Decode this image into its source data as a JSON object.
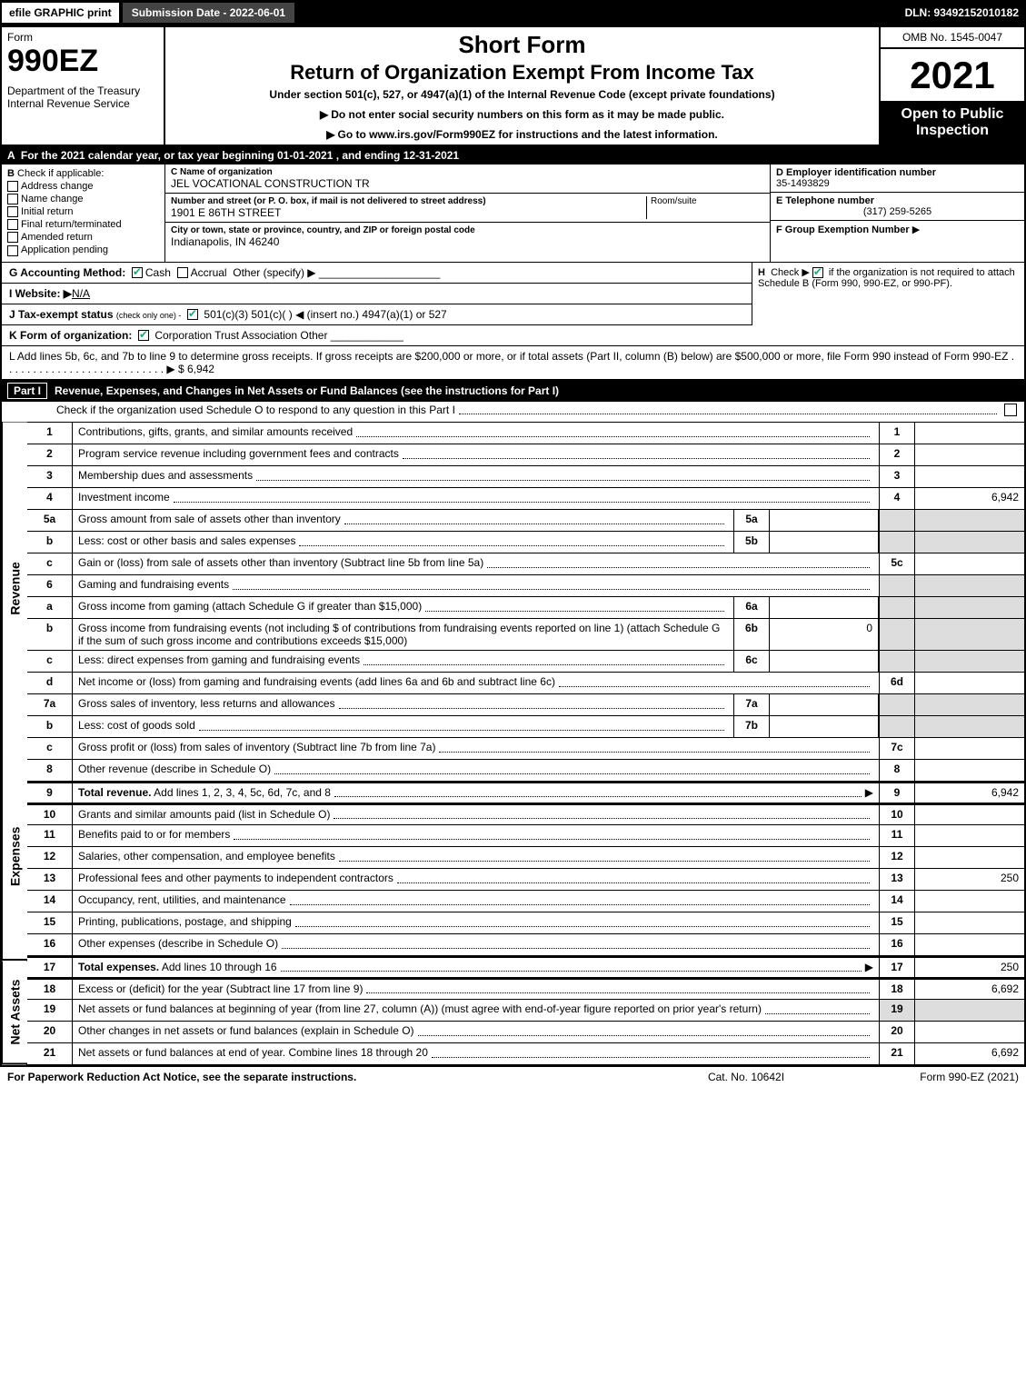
{
  "topbar": {
    "efile": "efile GRAPHIC print",
    "submission": "Submission Date - 2022-06-01",
    "dln": "DLN: 93492152010182"
  },
  "header": {
    "form": "Form",
    "formno": "990EZ",
    "dept": "Department of the Treasury\nInternal Revenue Service",
    "shortform": "Short Form",
    "roe": "Return of Organization Exempt From Income Tax",
    "under": "Under section 501(c), 527, or 4947(a)(1) of the Internal Revenue Code (except private foundations)",
    "noSSN": "Do not enter social security numbers on this form as it may be made public.",
    "goto": "Go to www.irs.gov/Form990EZ for instructions and the latest information.",
    "omb": "OMB No. 1545-0047",
    "year": "2021",
    "open": "Open to Public Inspection"
  },
  "A": "For the 2021 calendar year, or tax year beginning 01-01-2021 , and ending 12-31-2021",
  "B": {
    "title": "Check if applicable:",
    "items": [
      "Address change",
      "Name change",
      "Initial return",
      "Final return/terminated",
      "Amended return",
      "Application pending"
    ]
  },
  "C": {
    "nameLabel": "C Name of organization",
    "name": "JEL VOCATIONAL CONSTRUCTION TR",
    "streetLabel": "Number and street (or P. O. box, if mail is not delivered to street address)",
    "street": "1901 E 86TH STREET",
    "room": "Room/suite",
    "cityLabel": "City or town, state or province, country, and ZIP or foreign postal code",
    "city": "Indianapolis, IN  46240"
  },
  "D": {
    "label": "D Employer identification number",
    "value": "35-1493829"
  },
  "E": {
    "label": "E Telephone number",
    "value": "(317) 259-5265"
  },
  "F": {
    "label": "F Group Exemption Number",
    "arrow": "▶"
  },
  "G": {
    "label": "G Accounting Method:",
    "cash": "Cash",
    "accrual": "Accrual",
    "other": "Other (specify) ▶"
  },
  "H": {
    "label": "H",
    "text": "Check ▶",
    "rest": "if the organization is not required to attach Schedule B (Form 990, 990-EZ, or 990-PF)."
  },
  "I": {
    "label": "I Website: ▶",
    "value": "N/A"
  },
  "J": {
    "label": "J Tax-exempt status",
    "sub": "(check only one) -",
    "opts": "501(c)(3)   501(c)(  ) ◀ (insert no.)   4947(a)(1) or   527"
  },
  "K": {
    "label": "K Form of organization:",
    "opts": "Corporation   Trust   Association   Other"
  },
  "L": {
    "text": "L Add lines 5b, 6c, and 7b to line 9 to determine gross receipts. If gross receipts are $200,000 or more, or if total assets (Part II, column (B) below) are $500,000 or more, file Form 990 instead of Form 990-EZ",
    "amount": "$ 6,942"
  },
  "partI": {
    "tag": "Part I",
    "title": "Revenue, Expenses, and Changes in Net Assets or Fund Balances (see the instructions for Part I)",
    "schedO": "Check if the organization used Schedule O to respond to any question in this Part I"
  },
  "sideLabels": {
    "revenue": "Revenue",
    "expenses": "Expenses",
    "netassets": "Net Assets"
  },
  "lines": {
    "l1": {
      "n": "1",
      "d": "Contributions, gifts, grants, and similar amounts received",
      "rn": "1",
      "rv": ""
    },
    "l2": {
      "n": "2",
      "d": "Program service revenue including government fees and contracts",
      "rn": "2",
      "rv": ""
    },
    "l3": {
      "n": "3",
      "d": "Membership dues and assessments",
      "rn": "3",
      "rv": ""
    },
    "l4": {
      "n": "4",
      "d": "Investment income",
      "rn": "4",
      "rv": "6,942"
    },
    "l5a": {
      "n": "5a",
      "d": "Gross amount from sale of assets other than inventory",
      "sn": "5a",
      "sv": ""
    },
    "l5b": {
      "n": "b",
      "d": "Less: cost or other basis and sales expenses",
      "sn": "5b",
      "sv": ""
    },
    "l5c": {
      "n": "c",
      "d": "Gain or (loss) from sale of assets other than inventory (Subtract line 5b from line 5a)",
      "rn": "5c",
      "rv": ""
    },
    "l6": {
      "n": "6",
      "d": "Gaming and fundraising events"
    },
    "l6a": {
      "n": "a",
      "d": "Gross income from gaming (attach Schedule G if greater than $15,000)",
      "sn": "6a",
      "sv": ""
    },
    "l6b": {
      "n": "b",
      "d": "Gross income from fundraising events (not including $                    of contributions from fundraising events reported on line 1) (attach Schedule G if the sum of such gross income and contributions exceeds $15,000)",
      "sn": "6b",
      "sv": "0"
    },
    "l6c": {
      "n": "c",
      "d": "Less: direct expenses from gaming and fundraising events",
      "sn": "6c",
      "sv": ""
    },
    "l6d": {
      "n": "d",
      "d": "Net income or (loss) from gaming and fundraising events (add lines 6a and 6b and subtract line 6c)",
      "rn": "6d",
      "rv": ""
    },
    "l7a": {
      "n": "7a",
      "d": "Gross sales of inventory, less returns and allowances",
      "sn": "7a",
      "sv": ""
    },
    "l7b": {
      "n": "b",
      "d": "Less: cost of goods sold",
      "sn": "7b",
      "sv": ""
    },
    "l7c": {
      "n": "c",
      "d": "Gross profit or (loss) from sales of inventory (Subtract line 7b from line 7a)",
      "rn": "7c",
      "rv": ""
    },
    "l8": {
      "n": "8",
      "d": "Other revenue (describe in Schedule O)",
      "rn": "8",
      "rv": ""
    },
    "l9": {
      "n": "9",
      "d": "Total revenue. Add lines 1, 2, 3, 4, 5c, 6d, 7c, and 8",
      "rn": "9",
      "rv": "6,942",
      "arrow": true,
      "bold": true
    },
    "l10": {
      "n": "10",
      "d": "Grants and similar amounts paid (list in Schedule O)",
      "rn": "10",
      "rv": ""
    },
    "l11": {
      "n": "11",
      "d": "Benefits paid to or for members",
      "rn": "11",
      "rv": ""
    },
    "l12": {
      "n": "12",
      "d": "Salaries, other compensation, and employee benefits",
      "rn": "12",
      "rv": ""
    },
    "l13": {
      "n": "13",
      "d": "Professional fees and other payments to independent contractors",
      "rn": "13",
      "rv": "250"
    },
    "l14": {
      "n": "14",
      "d": "Occupancy, rent, utilities, and maintenance",
      "rn": "14",
      "rv": ""
    },
    "l15": {
      "n": "15",
      "d": "Printing, publications, postage, and shipping",
      "rn": "15",
      "rv": ""
    },
    "l16": {
      "n": "16",
      "d": "Other expenses (describe in Schedule O)",
      "rn": "16",
      "rv": ""
    },
    "l17": {
      "n": "17",
      "d": "Total expenses. Add lines 10 through 16",
      "rn": "17",
      "rv": "250",
      "arrow": true,
      "bold": true
    },
    "l18": {
      "n": "18",
      "d": "Excess or (deficit) for the year (Subtract line 17 from line 9)",
      "rn": "18",
      "rv": "6,692"
    },
    "l19": {
      "n": "19",
      "d": "Net assets or fund balances at beginning of year (from line 27, column (A)) (must agree with end-of-year figure reported on prior year's return)",
      "rn": "19",
      "rv": ""
    },
    "l20": {
      "n": "20",
      "d": "Other changes in net assets or fund balances (explain in Schedule O)",
      "rn": "20",
      "rv": ""
    },
    "l21": {
      "n": "21",
      "d": "Net assets or fund balances at end of year. Combine lines 18 through 20",
      "rn": "21",
      "rv": "6,692"
    }
  },
  "footer": {
    "left": "For Paperwork Reduction Act Notice, see the separate instructions.",
    "mid": "Cat. No. 10642I",
    "right": "Form 990-EZ (2021)"
  }
}
